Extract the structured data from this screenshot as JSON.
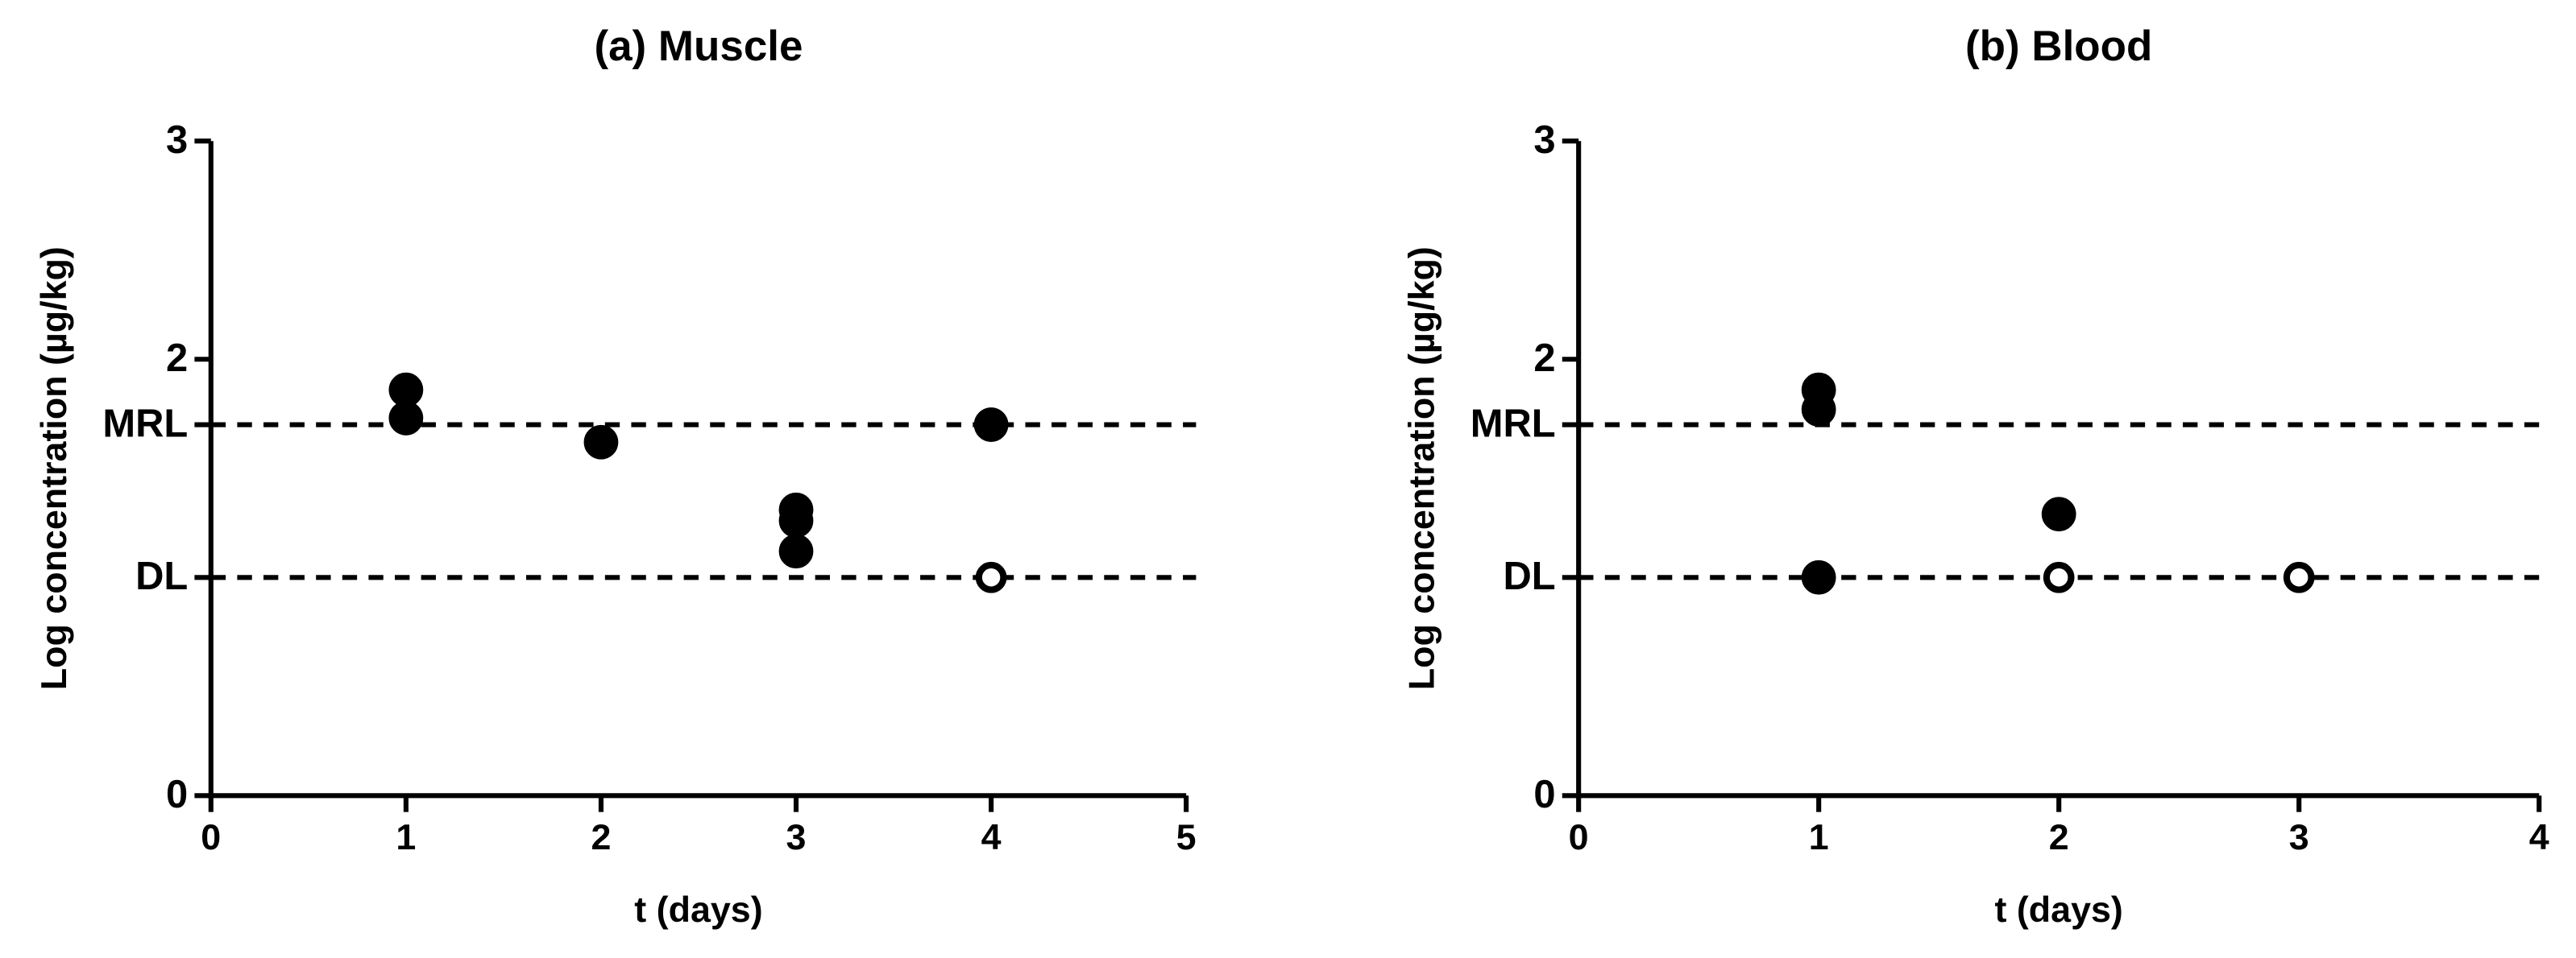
{
  "chart_data": [
    {
      "type": "scatter",
      "title": "(a) Muscle",
      "x_label": "t (days)",
      "y_label": "Log concentration (µg/kg)",
      "xlim": [
        0,
        5
      ],
      "xticks": [
        0,
        1,
        2,
        3,
        4,
        5
      ],
      "ylim": [
        0,
        3
      ],
      "yticks": [
        0,
        {
          "value": 1.0,
          "label": "DL"
        },
        {
          "value": 1.7,
          "label": "MRL"
        },
        2,
        3
      ],
      "series": [
        {
          "color": "#000000",
          "marker": "filled",
          "x": [
            1,
            1,
            2,
            3,
            3,
            3,
            4
          ],
          "values": [
            1.86,
            1.73,
            1.62,
            1.31,
            1.26,
            1.12,
            1.7
          ]
        },
        {
          "color": "#000000",
          "marker": "open",
          "x": [
            4
          ],
          "values": [
            1.0
          ]
        }
      ]
    },
    {
      "type": "scatter",
      "title": "(b) Blood",
      "x_label": "t (days)",
      "y_label": "Log concentration (µg/kg)",
      "xlim": [
        0,
        4
      ],
      "xticks": [
        0,
        1,
        2,
        3,
        4
      ],
      "ylim": [
        0,
        3
      ],
      "yticks": [
        0,
        {
          "value": 1.0,
          "label": "DL"
        },
        {
          "value": 1.7,
          "label": "MRL"
        },
        2,
        3
      ],
      "series": [
        {
          "color": "#000000",
          "marker": "filled",
          "x": [
            1,
            1,
            1,
            2
          ],
          "values": [
            1.86,
            1.77,
            1.0,
            1.29
          ]
        },
        {
          "color": "#000000",
          "marker": "open",
          "x": [
            2,
            3
          ],
          "values": [
            1.0,
            1.0
          ]
        }
      ]
    }
  ]
}
